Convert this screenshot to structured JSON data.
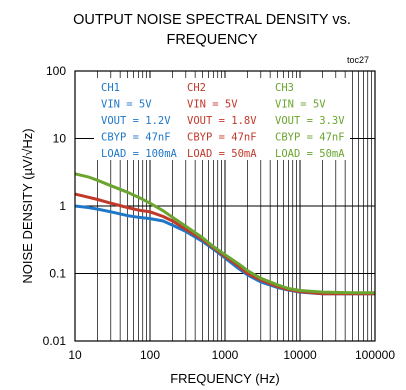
{
  "chart_data": {
    "type": "line",
    "title": [
      "OUTPUT NOISE SPECTRAL DENSITY vs.",
      "FREQUENCY"
    ],
    "figure_id": "toc27",
    "xlabel": "FREQUENCY (Hz)",
    "ylabel": "NOISE DENSITY (µV/√Hz)",
    "x_scale": "log",
    "y_scale": "log",
    "xlim": [
      10,
      100000
    ],
    "ylim": [
      0.01,
      100
    ],
    "x_ticks": [
      "10",
      "100",
      "1000",
      "10000",
      "100000"
    ],
    "y_ticks": [
      "100",
      "10",
      "1",
      "0.1",
      "0.01"
    ],
    "grid": true,
    "legend_position": "top-left",
    "legend": [
      {
        "color": "#1f77c8",
        "lines": [
          "CH1",
          "VIN = 5V",
          "VOUT = 1.2V",
          "CBYP = 47nF",
          "LOAD = 100mA"
        ]
      },
      {
        "color": "#c0392b",
        "lines": [
          "CH2",
          "VIN = 5V",
          "VOUT = 1.8V",
          "CBYP = 47nF",
          "LOAD = 50mA"
        ]
      },
      {
        "color": "#6aa52f",
        "lines": [
          "CH3",
          "VIN = 5V",
          "VOUT = 3.3V",
          "CBYP = 47nF",
          "LOAD = 50mA"
        ]
      }
    ],
    "series": [
      {
        "color": "#1f77c8",
        "x": [
          10,
          15,
          20,
          30,
          50,
          70,
          100,
          150,
          200,
          300,
          500,
          700,
          1000,
          1500,
          2000,
          3000,
          5000,
          7000,
          10000,
          20000,
          50000,
          100000
        ],
        "y": [
          1.0,
          0.95,
          0.9,
          0.82,
          0.72,
          0.68,
          0.65,
          0.6,
          0.52,
          0.42,
          0.3,
          0.23,
          0.17,
          0.12,
          0.095,
          0.075,
          0.062,
          0.057,
          0.053,
          0.05,
          0.05,
          0.05
        ]
      },
      {
        "color": "#c0392b",
        "x": [
          10,
          15,
          20,
          30,
          50,
          70,
          100,
          150,
          200,
          300,
          500,
          700,
          1000,
          1500,
          2000,
          3000,
          5000,
          7000,
          10000,
          20000,
          50000,
          100000
        ],
        "y": [
          1.5,
          1.35,
          1.25,
          1.1,
          0.95,
          0.87,
          0.82,
          0.7,
          0.6,
          0.45,
          0.32,
          0.24,
          0.18,
          0.13,
          0.1,
          0.08,
          0.064,
          0.058,
          0.054,
          0.05,
          0.05,
          0.05
        ]
      },
      {
        "color": "#6aa52f",
        "x": [
          10,
          15,
          20,
          30,
          50,
          70,
          100,
          150,
          200,
          300,
          500,
          700,
          1000,
          1500,
          2000,
          3000,
          5000,
          7000,
          10000,
          20000,
          50000,
          100000
        ],
        "y": [
          3.0,
          2.7,
          2.4,
          2.0,
          1.6,
          1.35,
          1.1,
          0.85,
          0.68,
          0.5,
          0.34,
          0.25,
          0.19,
          0.14,
          0.11,
          0.085,
          0.068,
          0.06,
          0.056,
          0.053,
          0.052,
          0.052
        ]
      }
    ]
  }
}
